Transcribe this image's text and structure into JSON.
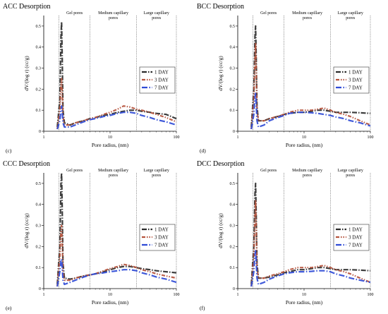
{
  "chart_data": [
    {
      "type": "line",
      "title": "ACC Desorption",
      "panel_label": "(c)",
      "xlabel": "Pore radius, (nm)",
      "ylabel": "dV/(log r) (cc/g)",
      "x_scale": "log",
      "xlim": [
        1,
        100
      ],
      "ylim": [
        0,
        0.55
      ],
      "x_ticks": [
        "1",
        "10",
        "100"
      ],
      "y_ticks": [
        "0",
        "0.1",
        "0.2",
        "0.3",
        "0.4",
        "0.5"
      ],
      "regions": [
        {
          "label": "Gel pores",
          "from": 1.7,
          "to": 5
        },
        {
          "label": "Medium capillary pores",
          "from": 5,
          "to": 25
        },
        {
          "label": "Large capillary pores",
          "from": 25,
          "to": 100
        }
      ],
      "legend_position": "right",
      "series": [
        {
          "name": "1 DAY",
          "color": "#2b2b2b",
          "x": [
            1.6,
            1.75,
            1.82,
            1.86,
            1.9,
            1.95,
            2.05,
            2.5,
            3,
            4,
            5,
            6,
            8,
            10,
            13,
            16,
            20,
            25,
            30,
            40,
            50,
            70,
            100
          ],
          "y": [
            0.02,
            0.15,
            0.45,
            0.52,
            0.35,
            0.1,
            0.04,
            0.03,
            0.04,
            0.05,
            0.06,
            0.065,
            0.075,
            0.08,
            0.09,
            0.095,
            0.1,
            0.1,
            0.095,
            0.09,
            0.085,
            0.08,
            0.06
          ]
        },
        {
          "name": "3 DAY",
          "color": "#b5533c",
          "x": [
            1.6,
            1.75,
            1.82,
            1.86,
            1.9,
            1.95,
            2.05,
            2.5,
            3,
            4,
            5,
            6,
            8,
            10,
            13,
            16,
            20,
            25,
            30,
            40,
            50,
            70,
            100
          ],
          "y": [
            0.01,
            0.1,
            0.22,
            0.25,
            0.18,
            0.07,
            0.03,
            0.03,
            0.04,
            0.05,
            0.06,
            0.065,
            0.08,
            0.09,
            0.105,
            0.12,
            0.115,
            0.105,
            0.1,
            0.09,
            0.08,
            0.065,
            0.045
          ]
        },
        {
          "name": "7 DAY",
          "color": "#2f4bd6",
          "x": [
            1.6,
            1.75,
            1.82,
            1.86,
            1.9,
            1.95,
            2.05,
            2.5,
            3,
            4,
            5,
            6,
            8,
            10,
            13,
            16,
            20,
            25,
            30,
            40,
            50,
            70,
            100
          ],
          "y": [
            0.01,
            0.05,
            0.1,
            0.12,
            0.09,
            0.04,
            0.02,
            0.02,
            0.03,
            0.045,
            0.055,
            0.06,
            0.07,
            0.075,
            0.085,
            0.09,
            0.09,
            0.085,
            0.075,
            0.065,
            0.055,
            0.045,
            0.03
          ]
        }
      ]
    },
    {
      "type": "line",
      "title": "BCC Desorption",
      "panel_label": "(d)",
      "xlabel": "Pore radius, (nm)",
      "ylabel": "dV/(log r) (cc/g)",
      "x_scale": "log",
      "xlim": [
        1,
        100
      ],
      "ylim": [
        0,
        0.55
      ],
      "x_ticks": [
        "1",
        "10",
        "100"
      ],
      "y_ticks": [
        "0",
        "0.1",
        "0.2",
        "0.3",
        "0.4",
        "0.5"
      ],
      "regions": [
        {
          "label": "Gel pores",
          "from": 1.7,
          "to": 5
        },
        {
          "label": "Medium capillary pores",
          "from": 5,
          "to": 25
        },
        {
          "label": "Large capillary pores",
          "from": 25,
          "to": 100
        }
      ],
      "legend_position": "right",
      "series": [
        {
          "name": "1 DAY",
          "color": "#2b2b2b",
          "x": [
            1.6,
            1.75,
            1.82,
            1.86,
            1.9,
            1.95,
            2.05,
            2.5,
            3,
            4,
            5,
            6,
            8,
            10,
            13,
            16,
            20,
            25,
            30,
            40,
            50,
            70,
            100
          ],
          "y": [
            0.02,
            0.2,
            0.45,
            0.5,
            0.35,
            0.12,
            0.05,
            0.05,
            0.06,
            0.07,
            0.08,
            0.085,
            0.09,
            0.09,
            0.095,
            0.1,
            0.1,
            0.095,
            0.09,
            0.09,
            0.09,
            0.088,
            0.085
          ]
        },
        {
          "name": "3 DAY",
          "color": "#b5533c",
          "x": [
            1.6,
            1.75,
            1.82,
            1.86,
            1.9,
            1.95,
            2.05,
            2.5,
            3,
            4,
            5,
            6,
            8,
            10,
            13,
            16,
            20,
            25,
            30,
            40,
            50,
            70,
            100
          ],
          "y": [
            0.01,
            0.15,
            0.35,
            0.42,
            0.3,
            0.1,
            0.05,
            0.05,
            0.06,
            0.07,
            0.08,
            0.09,
            0.1,
            0.1,
            0.1,
            0.105,
            0.11,
            0.1,
            0.09,
            0.08,
            0.07,
            0.05,
            0.03
          ]
        },
        {
          "name": "7 DAY",
          "color": "#2f4bd6",
          "x": [
            1.6,
            1.75,
            1.82,
            1.86,
            1.9,
            1.95,
            2.05,
            2.5,
            3,
            4,
            5,
            6,
            8,
            10,
            13,
            16,
            20,
            25,
            30,
            40,
            50,
            70,
            100
          ],
          "y": [
            0.01,
            0.08,
            0.16,
            0.18,
            0.13,
            0.05,
            0.02,
            0.03,
            0.05,
            0.065,
            0.075,
            0.085,
            0.09,
            0.09,
            0.088,
            0.085,
            0.08,
            0.075,
            0.068,
            0.06,
            0.05,
            0.04,
            0.025
          ]
        }
      ]
    },
    {
      "type": "line",
      "title": "CCC Desorption",
      "panel_label": "(e)",
      "xlabel": "Pore radius, (nm)",
      "ylabel": "dV/(log r) (cc/g)",
      "x_scale": "log",
      "xlim": [
        1,
        100
      ],
      "ylim": [
        0,
        0.55
      ],
      "x_ticks": [
        "1",
        "10",
        "100"
      ],
      "y_ticks": [
        "0",
        "0.1",
        "0.2",
        "0.3",
        "0.4",
        "0.5"
      ],
      "regions": [
        {
          "label": "Gel pores",
          "from": 1.7,
          "to": 5
        },
        {
          "label": "Medium capillary pores",
          "from": 5,
          "to": 25
        },
        {
          "label": "Large capillary pores",
          "from": 25,
          "to": 100
        }
      ],
      "legend_position": "right",
      "series": [
        {
          "name": "1 DAY",
          "color": "#2b2b2b",
          "x": [
            1.6,
            1.75,
            1.82,
            1.86,
            1.9,
            1.95,
            2.05,
            2.5,
            3,
            4,
            5,
            6,
            8,
            10,
            13,
            16,
            20,
            25,
            30,
            40,
            50,
            70,
            100
          ],
          "y": [
            0.02,
            0.2,
            0.5,
            0.55,
            0.38,
            0.12,
            0.05,
            0.045,
            0.05,
            0.06,
            0.065,
            0.07,
            0.08,
            0.09,
            0.1,
            0.105,
            0.105,
            0.1,
            0.095,
            0.09,
            0.085,
            0.08,
            0.075
          ]
        },
        {
          "name": "3 DAY",
          "color": "#b5533c",
          "x": [
            1.6,
            1.75,
            1.82,
            1.86,
            1.9,
            1.95,
            2.05,
            2.5,
            3,
            4,
            5,
            6,
            8,
            10,
            13,
            16,
            20,
            25,
            30,
            40,
            50,
            70,
            100
          ],
          "y": [
            0.01,
            0.15,
            0.28,
            0.3,
            0.22,
            0.08,
            0.04,
            0.04,
            0.05,
            0.06,
            0.065,
            0.07,
            0.085,
            0.095,
            0.105,
            0.115,
            0.11,
            0.1,
            0.09,
            0.08,
            0.07,
            0.06,
            0.05
          ]
        },
        {
          "name": "7 DAY",
          "color": "#2f4bd6",
          "x": [
            1.6,
            1.75,
            1.82,
            1.86,
            1.9,
            1.95,
            2.05,
            2.5,
            3,
            4,
            5,
            6,
            8,
            10,
            13,
            16,
            20,
            25,
            30,
            40,
            50,
            70,
            100
          ],
          "y": [
            0.01,
            0.08,
            0.13,
            0.14,
            0.1,
            0.04,
            0.02,
            0.03,
            0.04,
            0.055,
            0.065,
            0.07,
            0.075,
            0.08,
            0.085,
            0.09,
            0.09,
            0.085,
            0.075,
            0.065,
            0.055,
            0.045,
            0.03
          ]
        }
      ]
    },
    {
      "type": "line",
      "title": "DCC Desorption",
      "panel_label": "(f)",
      "xlabel": "Pore radius, (nm)",
      "ylabel": "dV/(log r) (cc/g)",
      "x_scale": "log",
      "xlim": [
        1,
        100
      ],
      "ylim": [
        0,
        0.55
      ],
      "x_ticks": [
        "1",
        "10",
        "100"
      ],
      "y_ticks": [
        "0",
        "0.1",
        "0.2",
        "0.3",
        "0.4",
        "0.5"
      ],
      "regions": [
        {
          "label": "Gel pores",
          "from": 1.7,
          "to": 5
        },
        {
          "label": "Medium capillary pores",
          "from": 5,
          "to": 25
        },
        {
          "label": "Large capillary pores",
          "from": 25,
          "to": 100
        }
      ],
      "legend_position": "right",
      "series": [
        {
          "name": "1 DAY",
          "color": "#2b2b2b",
          "x": [
            1.6,
            1.75,
            1.82,
            1.86,
            1.9,
            1.95,
            2.05,
            2.5,
            3,
            4,
            5,
            6,
            8,
            10,
            13,
            16,
            20,
            25,
            30,
            40,
            50,
            70,
            100
          ],
          "y": [
            0.02,
            0.2,
            0.45,
            0.5,
            0.35,
            0.12,
            0.05,
            0.05,
            0.055,
            0.065,
            0.075,
            0.08,
            0.09,
            0.09,
            0.095,
            0.1,
            0.1,
            0.095,
            0.09,
            0.09,
            0.09,
            0.088,
            0.085
          ]
        },
        {
          "name": "3 DAY",
          "color": "#b5533c",
          "x": [
            1.6,
            1.75,
            1.82,
            1.86,
            1.9,
            1.95,
            2.05,
            2.5,
            3,
            4,
            5,
            6,
            8,
            10,
            13,
            16,
            20,
            25,
            30,
            40,
            50,
            70,
            100
          ],
          "y": [
            0.01,
            0.15,
            0.35,
            0.42,
            0.3,
            0.1,
            0.05,
            0.05,
            0.06,
            0.07,
            0.08,
            0.09,
            0.1,
            0.1,
            0.1,
            0.105,
            0.11,
            0.1,
            0.09,
            0.08,
            0.07,
            0.05,
            0.03
          ]
        },
        {
          "name": "7 DAY",
          "color": "#2f4bd6",
          "x": [
            1.6,
            1.75,
            1.82,
            1.86,
            1.9,
            1.95,
            2.05,
            2.5,
            3,
            4,
            5,
            6,
            8,
            10,
            13,
            16,
            20,
            25,
            30,
            40,
            50,
            70,
            100
          ],
          "y": [
            0.01,
            0.08,
            0.16,
            0.18,
            0.13,
            0.05,
            0.02,
            0.03,
            0.045,
            0.06,
            0.07,
            0.075,
            0.08,
            0.08,
            0.082,
            0.085,
            0.085,
            0.08,
            0.07,
            0.06,
            0.05,
            0.04,
            0.03
          ]
        }
      ]
    }
  ]
}
